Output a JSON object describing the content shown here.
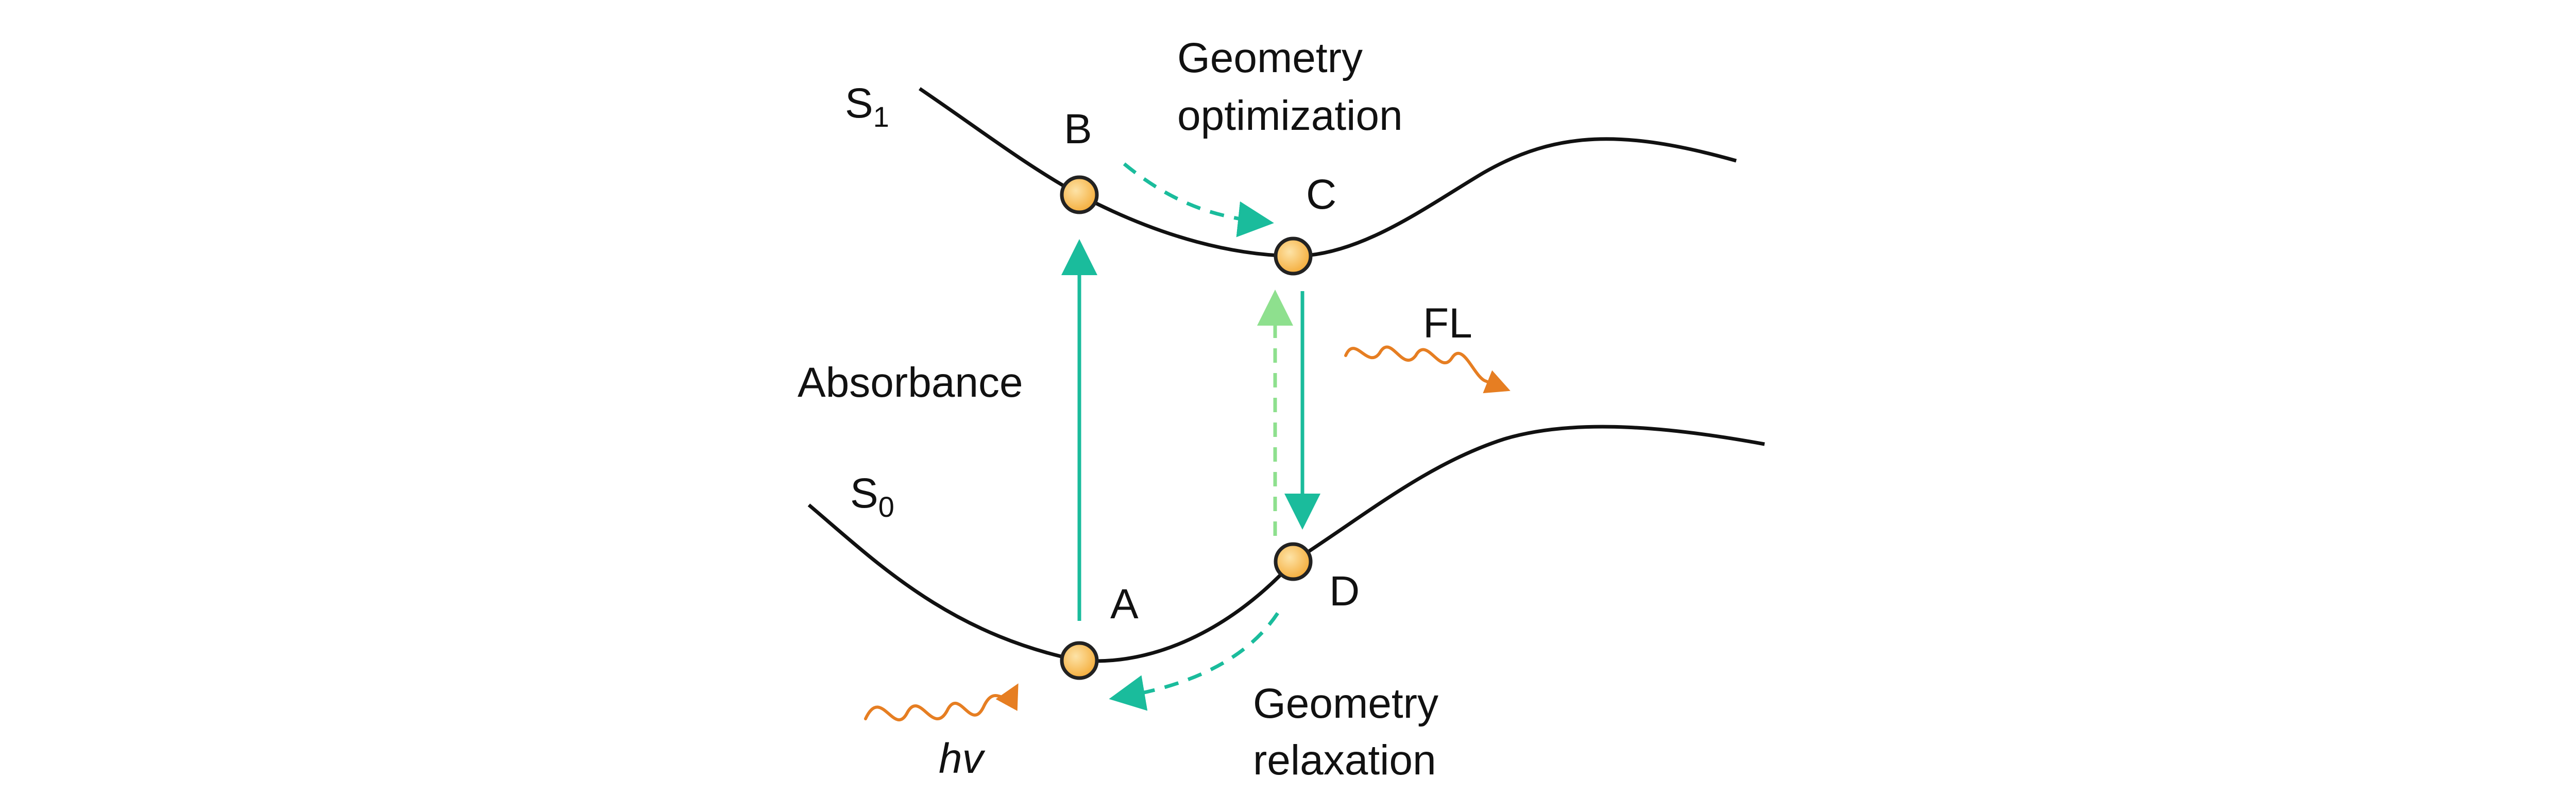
{
  "colors": {
    "teal": "#1ABC9C",
    "light_green": "#8EE08E",
    "orange": "#E67E22",
    "node_fill": "#F5B041",
    "node_inner": "#FDE3A7",
    "curve": "#111111"
  },
  "states": {
    "s1": {
      "letter": "S",
      "index": "1"
    },
    "s0": {
      "letter": "S",
      "index": "0"
    }
  },
  "points": {
    "a": "A",
    "b": "B",
    "c": "C",
    "d": "D"
  },
  "labels": {
    "geom_opt_line1": "Geometry",
    "geom_opt_line2": "optimization",
    "absorbance": "Absorbance",
    "fl": "FL",
    "geom_relax_line1": "Geometry",
    "geom_relax_line2": "relaxation",
    "hv": "hv"
  }
}
